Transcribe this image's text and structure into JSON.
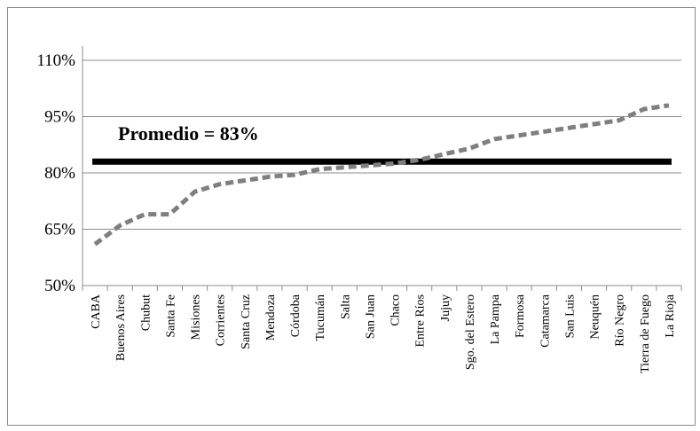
{
  "chart_data": {
    "type": "line",
    "title": "",
    "xlabel": "",
    "ylabel": "",
    "ylim": [
      50,
      110
    ],
    "y_ticks": [
      "50%",
      "65%",
      "80%",
      "95%",
      "110%"
    ],
    "y_tick_values": [
      50,
      65,
      80,
      95,
      110
    ],
    "grid": true,
    "legend": "none",
    "categories": [
      "CABA",
      "Buenos Aires",
      "Chubut",
      "Santa Fe",
      "Misiones",
      "Corrientes",
      "Santa Cruz",
      "Mendoza",
      "Córdoba",
      "Tucumán",
      "Salta",
      "San Juan",
      "Chaco",
      "Entre Ríos",
      "Jujuy",
      "Sgo. del Estero",
      "La Pampa",
      "Formosa",
      "Catamarca",
      "San Luis",
      "Neuquén",
      "Río Negro",
      "Tierra de Fuego",
      "La Rioja"
    ],
    "series": [
      {
        "values": [
          61,
          66,
          69,
          69,
          75,
          77,
          78,
          79,
          79.5,
          81,
          81.5,
          82,
          82.5,
          83.5,
          85,
          86.5,
          89,
          90,
          91,
          92,
          93,
          94,
          97,
          98
        ],
        "color": "#7f7f7f",
        "style": "dashed"
      }
    ],
    "reference_line": {
      "value": 83,
      "label": "Promedio = 83%",
      "color": "#000000"
    }
  }
}
